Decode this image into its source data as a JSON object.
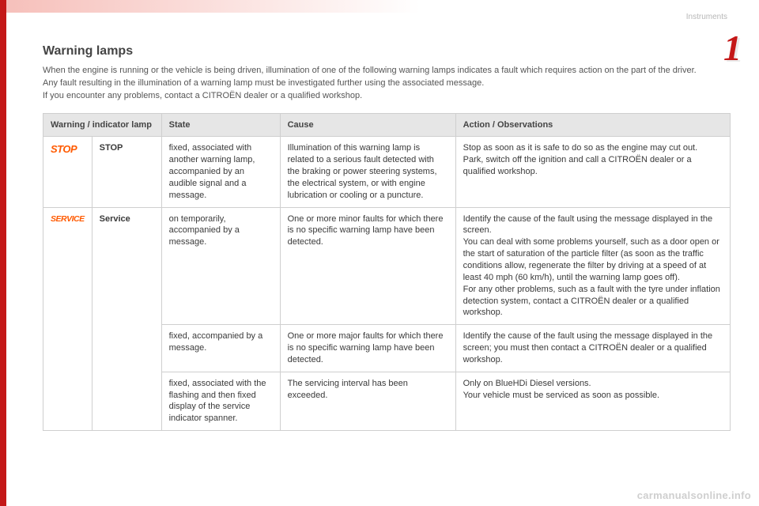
{
  "section_label": "Instruments",
  "chapter_number": "1",
  "title": "Warning lamps",
  "intro": [
    "When the engine is running or the vehicle is being driven, illumination of one of the following warning lamps indicates a fault which requires action on the part of the driver.",
    "Any fault resulting in the illumination of a warning lamp must be investigated further using the associated message.",
    "If you encounter any problems, contact a CITROËN dealer or a qualified workshop."
  ],
  "columns": [
    "Warning / indicator lamp",
    "State",
    "Cause",
    "Action / Observations"
  ],
  "rows": [
    {
      "icon_text": "STOP",
      "icon_class": "",
      "name": "STOP",
      "state": "fixed, associated with another warning lamp, accompanied by an audible signal and a message.",
      "cause": "Illumination of this warning lamp is related to a serious fault detected with the braking or power steering systems, the electrical system, or with engine lubrication or cooling or a puncture.",
      "action": "Stop as soon as it is safe to do so as the engine may cut out.\nPark, switch off the ignition and call a CITROËN dealer or a qualified workshop.",
      "rowspan": 1
    },
    {
      "icon_text": "SERVICE",
      "icon_class": "small",
      "name": "Service",
      "state": "on temporarily, accompanied by a message.",
      "cause": "One or more minor faults for which there is no specific warning lamp have been detected.",
      "action": "Identify the cause of the fault using the message displayed in the screen.\nYou can deal with some problems yourself, such as a door open or the start of saturation of the particle filter (as soon as the traffic conditions allow, regenerate the filter by driving at a speed of at least 40 mph (60 km/h), until the warning lamp goes off).\nFor any other problems, such as a fault with the tyre under inflation detection system, contact a CITROËN dealer or a qualified workshop.",
      "rowspan": 3
    },
    {
      "state": "fixed, accompanied by a message.",
      "cause": "One or more major faults for which there is no specific warning lamp have been detected.",
      "action": "Identify the cause of the fault using the message displayed in the screen; you must then contact a CITROËN dealer or a qualified workshop."
    },
    {
      "state": "fixed, associated with the flashing and then fixed display of the service indicator spanner.",
      "cause": "The servicing interval has been exceeded.",
      "action": "Only on BlueHDi Diesel versions.\nYour vehicle must be serviced as soon as possible."
    }
  ],
  "watermark": "carmanualsonline.info",
  "colors": {
    "accent": "#c41818",
    "icon": "#ff5a00",
    "header_bg": "#e6e6e6",
    "border": "#cfcfcf"
  }
}
